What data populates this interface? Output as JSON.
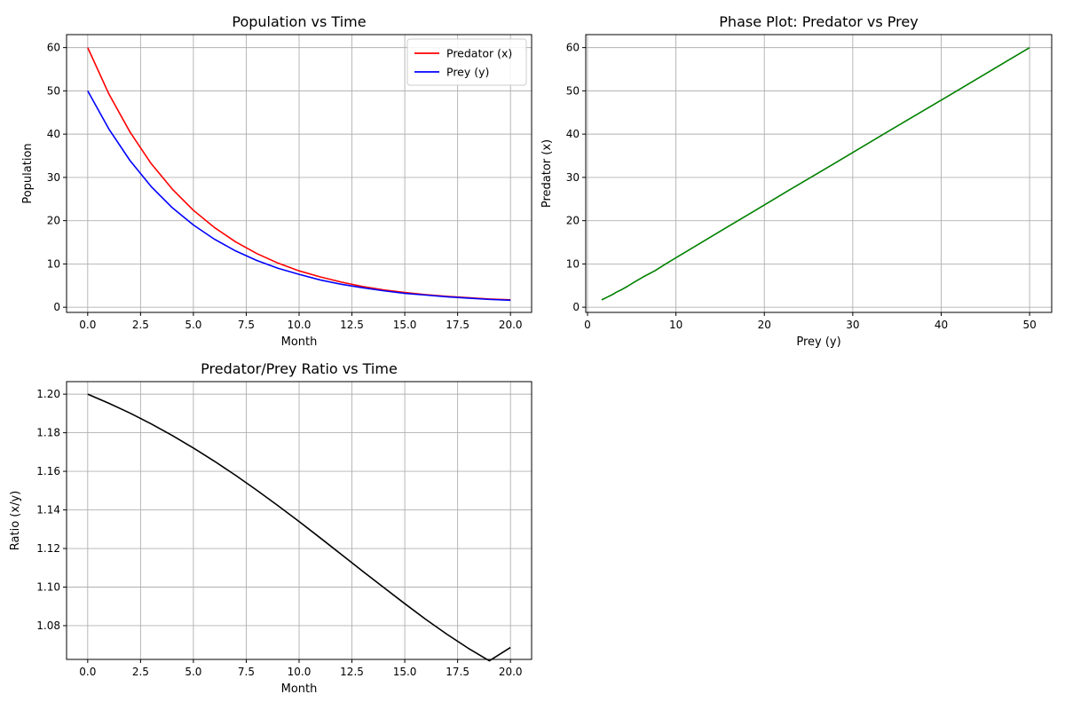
{
  "chart_data": [
    {
      "type": "line",
      "title": "Population vs Time",
      "xlabel": "Month",
      "ylabel": "Population",
      "xlim": [
        -1,
        21
      ],
      "ylim": [
        -1.2,
        63
      ],
      "xticks": [
        0.0,
        2.5,
        5.0,
        7.5,
        10.0,
        12.5,
        15.0,
        17.5,
        20.0
      ],
      "xtick_labels": [
        "0.0",
        "2.5",
        "5.0",
        "7.5",
        "10.0",
        "12.5",
        "15.0",
        "17.5",
        "20.0"
      ],
      "yticks": [
        0,
        10,
        20,
        30,
        40,
        50,
        60
      ],
      "ytick_labels": [
        "0",
        "10",
        "20",
        "30",
        "40",
        "50",
        "60"
      ],
      "grid": true,
      "legend": "top-right",
      "x": [
        0,
        1,
        2,
        3,
        4,
        5,
        6,
        7,
        8,
        9,
        10,
        11,
        12,
        13,
        14,
        15,
        16,
        17,
        18,
        19,
        20
      ],
      "series": [
        {
          "name": "Predator (x)",
          "color": "#ff0000",
          "values": [
            60.0,
            49.3,
            40.5,
            33.2,
            27.3,
            22.4,
            18.4,
            15.1,
            12.4,
            10.2,
            8.4,
            7.0,
            5.8,
            4.8,
            4.0,
            3.4,
            2.9,
            2.5,
            2.2,
            1.9,
            1.7
          ]
        },
        {
          "name": "Prey (y)",
          "color": "#0000ff",
          "values": [
            50.0,
            41.2,
            33.9,
            27.9,
            23.0,
            19.0,
            15.7,
            13.0,
            10.8,
            9.0,
            7.6,
            6.3,
            5.3,
            4.5,
            3.8,
            3.2,
            2.8,
            2.4,
            2.1,
            1.8,
            1.6
          ]
        }
      ]
    },
    {
      "type": "line",
      "title": "Phase Plot: Predator vs Prey",
      "xlabel": "Prey (y)",
      "ylabel": "Predator (x)",
      "xlim": [
        -0.2,
        52.5
      ],
      "ylim": [
        -1.2,
        63
      ],
      "xticks": [
        0,
        10,
        20,
        30,
        40,
        50
      ],
      "xtick_labels": [
        "0",
        "10",
        "20",
        "30",
        "40",
        "50"
      ],
      "yticks": [
        0,
        10,
        20,
        30,
        40,
        50,
        60
      ],
      "ytick_labels": [
        "0",
        "10",
        "20",
        "30",
        "40",
        "50",
        "60"
      ],
      "grid": true,
      "series": [
        {
          "color": "#008000",
          "x": [
            50.0,
            41.2,
            33.9,
            27.9,
            23.0,
            19.0,
            15.7,
            13.0,
            10.8,
            9.0,
            7.6,
            6.3,
            5.3,
            4.5,
            3.8,
            3.2,
            2.8,
            2.4,
            2.1,
            1.8,
            1.6
          ],
          "values": [
            60.0,
            49.3,
            40.5,
            33.2,
            27.3,
            22.4,
            18.4,
            15.1,
            12.4,
            10.2,
            8.4,
            7.0,
            5.8,
            4.8,
            4.0,
            3.4,
            2.9,
            2.5,
            2.2,
            1.9,
            1.7
          ]
        }
      ]
    },
    {
      "type": "line",
      "title": "Predator/Prey Ratio vs Time",
      "xlabel": "Month",
      "ylabel": "Ratio (x/y)",
      "xlim": [
        -1,
        21
      ],
      "ylim": [
        1.0625,
        1.2065
      ],
      "xticks": [
        0.0,
        2.5,
        5.0,
        7.5,
        10.0,
        12.5,
        15.0,
        17.5,
        20.0
      ],
      "xtick_labels": [
        "0.0",
        "2.5",
        "5.0",
        "7.5",
        "10.0",
        "12.5",
        "15.0",
        "17.5",
        "20.0"
      ],
      "yticks": [
        1.08,
        1.1,
        1.12,
        1.14,
        1.16,
        1.18,
        1.2
      ],
      "ytick_labels": [
        "1.08",
        "1.10",
        "1.12",
        "1.14",
        "1.16",
        "1.18",
        "1.20"
      ],
      "grid": true,
      "x": [
        0,
        1,
        2,
        3,
        4,
        5,
        6,
        7,
        8,
        9,
        10,
        11,
        12,
        13,
        14,
        15,
        16,
        17,
        18,
        19,
        20
      ],
      "series": [
        {
          "color": "#000000",
          "values": [
            1.2,
            1.1953,
            1.1902,
            1.1846,
            1.1786,
            1.1721,
            1.1652,
            1.1579,
            1.1502,
            1.1422,
            1.134,
            1.1255,
            1.1169,
            1.1083,
            1.0998,
            1.0914,
            1.0832,
            1.0755,
            1.0683,
            1.0618,
            1.0687
          ]
        }
      ]
    }
  ]
}
